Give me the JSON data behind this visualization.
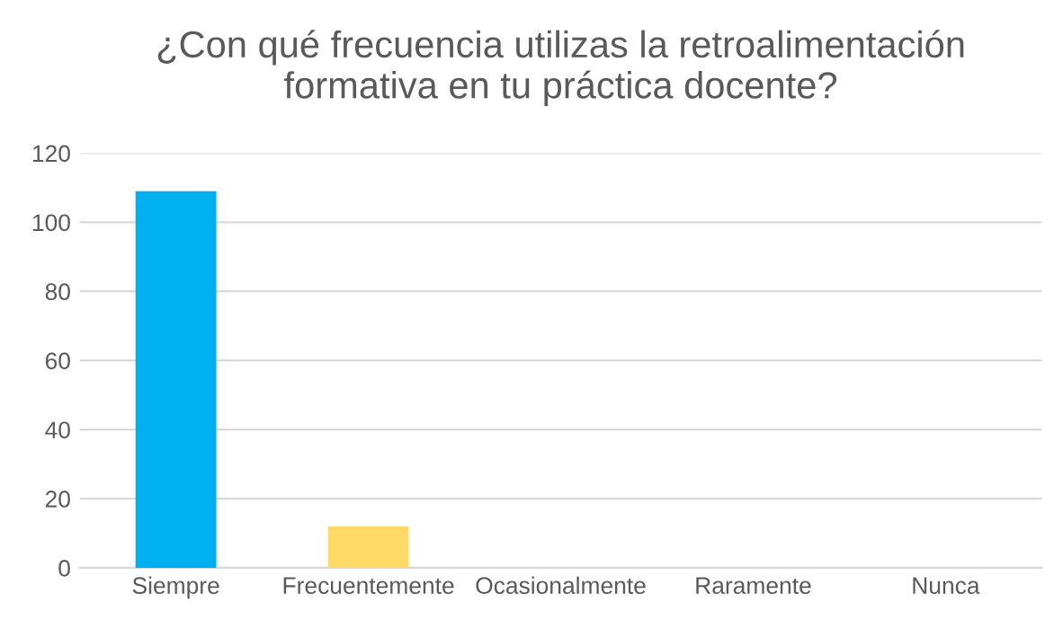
{
  "chart_data": {
    "type": "bar",
    "title": "¿Con qué frecuencia utilizas la retroalimentación\nformativa en tu práctica docente?",
    "categories": [
      "Siempre",
      "Frecuentemente",
      "Ocasionalmente",
      "Raramente",
      "Nunca"
    ],
    "values": [
      109,
      12,
      0,
      0,
      0
    ],
    "colors": [
      "#00b0f0",
      "#ffd966",
      "#a5a5a5",
      "#ed7d31",
      "#70ad47"
    ],
    "ylim": [
      0,
      120
    ],
    "yticks": [
      0,
      20,
      40,
      60,
      80,
      100,
      120
    ],
    "grid": "y",
    "legend": false
  }
}
